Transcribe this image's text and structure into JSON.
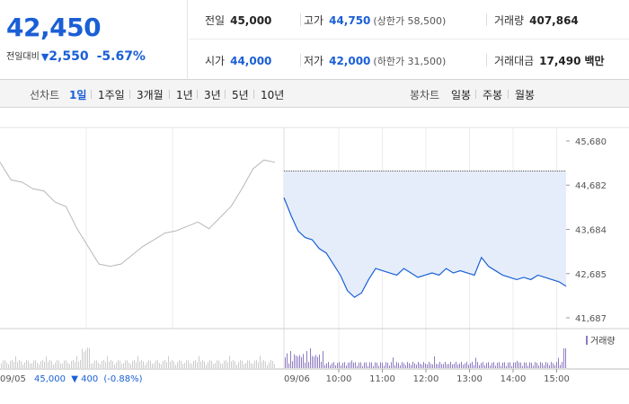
{
  "summary": {
    "current_price": "42,450",
    "change_label": "전일대비",
    "change_icon": "down-triangle-icon",
    "change_amount": "2,550",
    "change_rate": "-5.67%",
    "prev_close_label": "전일",
    "prev_close": "45,000",
    "high_label": "고가",
    "high": "44,750",
    "upper_limit": "(상한가 58,500)",
    "volume_label": "거래량",
    "volume": "407,864",
    "open_label": "시가",
    "open": "44,000",
    "low_label": "저가",
    "low": "42,000",
    "lower_limit": "(하한가 31,500)",
    "amount_label": "거래대금",
    "amount": "17,490",
    "amount_unit": "백만"
  },
  "periods": {
    "line_title": "선차트",
    "line_items": [
      "1일",
      "1주일",
      "3개월",
      "1년",
      "3년",
      "5년",
      "10년"
    ],
    "active": "1일",
    "candle_title": "봉차트",
    "candle_items": [
      "일봉",
      "주봉",
      "월봉"
    ]
  },
  "colors": {
    "accent": "#1a5fd6",
    "fill": "#e5edfb",
    "prev_day": "#b8b8b8",
    "volume_today": "#8e7bc1",
    "volume_prev": "#cccccc"
  },
  "chart_data": {
    "type": "line",
    "title": "",
    "xlabel": "",
    "ylabel": "",
    "ylim": [
      41687,
      45680
    ],
    "y_ticks": [
      "45,680",
      "44,682",
      "43,684",
      "42,685",
      "41,687"
    ],
    "reference_price": 45000,
    "previous_day": {
      "date": "09/05",
      "close": "45,000",
      "change": "400",
      "change_rate": "(-0.88%)",
      "points": [
        45200,
        44800,
        44750,
        44600,
        44550,
        44300,
        44200,
        43700,
        43300,
        42900,
        42850,
        42900,
        43100,
        43300,
        43450,
        43600,
        43650,
        43750,
        43850,
        43700,
        43950,
        44200,
        44600,
        45050,
        45250,
        45200
      ]
    },
    "today": {
      "date": "09/06",
      "x_ticks": [
        "10:00",
        "11:00",
        "12:00",
        "13:00",
        "14:00",
        "15:00"
      ],
      "points": [
        44400,
        44000,
        43650,
        43500,
        43450,
        43250,
        43150,
        42900,
        42650,
        42300,
        42150,
        42250,
        42550,
        42800,
        42750,
        42700,
        42650,
        42800,
        42700,
        42600,
        42650,
        42700,
        42650,
        42800,
        42700,
        42750,
        42700,
        42650,
        43050,
        42850,
        42750,
        42650,
        42600,
        42550,
        42600,
        42550,
        42650,
        42600,
        42550,
        42500,
        42400
      ]
    },
    "volume_legend": "거래량"
  }
}
